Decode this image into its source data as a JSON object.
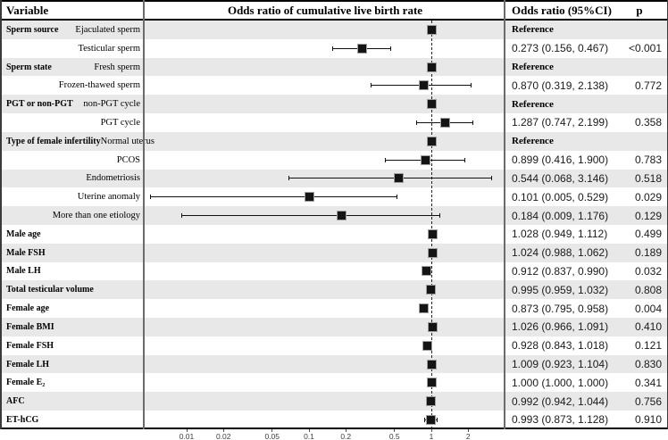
{
  "header": {
    "variable": "Variable",
    "plot_title": "Odds ratio of cumulative live birth rate",
    "or_col": "Odds ratio (95%CI)",
    "p_col": "p"
  },
  "colors": {
    "row_alt": "#e8e8e8",
    "row_plain": "#ffffff",
    "marker": "#141414",
    "marker_outline": "#a0a0a0",
    "column_separator": "#6b6b6b",
    "table_border": "#000000"
  },
  "chart_data": {
    "type": "forest",
    "x_scale": "log10",
    "x_axis_tick_labels": [
      "0.01",
      "0.02",
      "0.05",
      "0.1",
      "0.2",
      "0.5",
      "1",
      "2"
    ],
    "reference_line_x": 1,
    "rows": [
      {
        "group": "Sperm source",
        "label": "Ejaculated sperm",
        "or": 1,
        "ci": null,
        "or_text": "Reference",
        "p_text": "",
        "reference": true
      },
      {
        "group": "",
        "label": "Testicular sperm",
        "or": 0.273,
        "ci": [
          0.156,
          0.467
        ],
        "or_text": "0.273 (0.156, 0.467)",
        "p_text": "<0.001",
        "reference": false
      },
      {
        "group": "Sperm state",
        "label": "Fresh sperm",
        "or": 1,
        "ci": null,
        "or_text": "Reference",
        "p_text": "",
        "reference": true
      },
      {
        "group": "",
        "label": "Frozen-thawed sperm",
        "or": 0.87,
        "ci": [
          0.319,
          2.138
        ],
        "or_text": "0.870 (0.319, 2.138)",
        "p_text": "0.772",
        "reference": false
      },
      {
        "group": "PGT or non-PGT",
        "label": "non-PGT cycle",
        "or": 1,
        "ci": null,
        "or_text": "Reference",
        "p_text": "",
        "reference": true
      },
      {
        "group": "",
        "label": "PGT cycle",
        "or": 1.287,
        "ci": [
          0.747,
          2.199
        ],
        "or_text": "1.287 (0.747, 2.199)",
        "p_text": "0.358",
        "reference": false
      },
      {
        "group": "Type of female infertility",
        "label": "Normal uterus",
        "or": 1,
        "ci": null,
        "or_text": "Reference",
        "p_text": "",
        "reference": true
      },
      {
        "group": "",
        "label": "PCOS",
        "or": 0.899,
        "ci": [
          0.416,
          1.9
        ],
        "or_text": "0.899 (0.416, 1.900)",
        "p_text": "0.783",
        "reference": false
      },
      {
        "group": "",
        "label": "Endometriosis",
        "or": 0.544,
        "ci": [
          0.068,
          3.146
        ],
        "or_text": "0.544 (0.068, 3.146)",
        "p_text": "0.518",
        "reference": false
      },
      {
        "group": "",
        "label": "Uterine anomaly",
        "or": 0.101,
        "ci": [
          0.005,
          0.529
        ],
        "or_text": "0.101 (0.005, 0.529)",
        "p_text": "0.029",
        "reference": false
      },
      {
        "group": "",
        "label": "More than one etiology",
        "or": 0.184,
        "ci": [
          0.009,
          1.176
        ],
        "or_text": "0.184 (0.009, 1.176)",
        "p_text": "0.129",
        "reference": false
      },
      {
        "group": "Male age",
        "label": "",
        "or": 1.028,
        "ci": [
          0.949,
          1.112
        ],
        "or_text": "1.028 (0.949, 1.112)",
        "p_text": "0.499",
        "reference": false
      },
      {
        "group": "Male FSH",
        "label": "",
        "or": 1.024,
        "ci": [
          0.988,
          1.062
        ],
        "or_text": "1.024 (0.988, 1.062)",
        "p_text": "0.189",
        "reference": false
      },
      {
        "group": "Male LH",
        "label": "",
        "or": 0.912,
        "ci": [
          0.837,
          0.99
        ],
        "or_text": "0.912 (0.837, 0.990)",
        "p_text": "0.032",
        "reference": false
      },
      {
        "group": "Total testicular volume",
        "label": "",
        "or": 0.995,
        "ci": [
          0.959,
          1.032
        ],
        "or_text": "0.995 (0.959, 1.032)",
        "p_text": "0.808",
        "reference": false
      },
      {
        "group": "Female age",
        "label": "",
        "or": 0.873,
        "ci": [
          0.795,
          0.958
        ],
        "or_text": "0.873 (0.795, 0.958)",
        "p_text": "0.004",
        "reference": false
      },
      {
        "group": "Female BMI",
        "label": "",
        "or": 1.026,
        "ci": [
          0.966,
          1.091
        ],
        "or_text": "1.026 (0.966, 1.091)",
        "p_text": "0.410",
        "reference": false
      },
      {
        "group": "Female FSH",
        "label": "",
        "or": 0.928,
        "ci": [
          0.843,
          1.018
        ],
        "or_text": "0.928 (0.843, 1.018)",
        "p_text": "0.121",
        "reference": false
      },
      {
        "group": "Female LH",
        "label": "",
        "or": 1.009,
        "ci": [
          0.923,
          1.104
        ],
        "or_text": "1.009 (0.923, 1.104)",
        "p_text": "0.830",
        "reference": false
      },
      {
        "group": "Female E₂",
        "label": "",
        "or": 1.0,
        "ci": [
          1.0,
          1.0
        ],
        "or_text": "1.000 (1.000, 1.000)",
        "p_text": "0.341",
        "reference": false
      },
      {
        "group": "AFC",
        "label": "",
        "or": 0.992,
        "ci": [
          0.942,
          1.044
        ],
        "or_text": "0.992 (0.942, 1.044)",
        "p_text": "0.756",
        "reference": false
      },
      {
        "group": "ET-hCG",
        "label": "",
        "or": 0.993,
        "ci": [
          0.873,
          1.128
        ],
        "or_text": "0.993 (0.873, 1.128)",
        "p_text": "0.910",
        "reference": false
      }
    ]
  }
}
